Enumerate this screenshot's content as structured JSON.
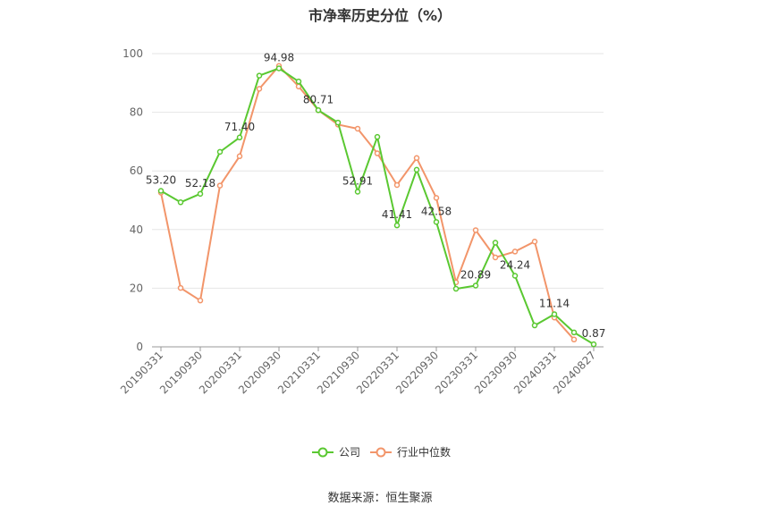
{
  "chart_data": {
    "type": "line",
    "title": "市净率历史分位（%）",
    "xlabel": "",
    "ylabel": "",
    "ylim": [
      0,
      100
    ],
    "yticks": [
      0,
      20,
      40,
      60,
      80,
      100
    ],
    "grid": true,
    "legend_position": "bottom",
    "x": [
      "20190331",
      "20190630",
      "20190930",
      "20191231",
      "20200331",
      "20200630",
      "20200930",
      "20201231",
      "20210331",
      "20210630",
      "20210930",
      "20211231",
      "20220331",
      "20220630",
      "20220930",
      "20221231",
      "20230331",
      "20230630",
      "20230930",
      "20231231",
      "20240331",
      "20240630",
      "20240827"
    ],
    "x_tick_labels": [
      "20190331",
      "20190930",
      "20200331",
      "20200930",
      "20210331",
      "20210930",
      "20220331",
      "20220930",
      "20230331",
      "20230930",
      "20240331",
      "20240827"
    ],
    "series": [
      {
        "name": "公司",
        "color": "#5ac831",
        "values": [
          53.2,
          49.3,
          52.18,
          66.5,
          71.4,
          92.5,
          94.98,
          90.5,
          80.71,
          76.5,
          52.91,
          71.6,
          41.41,
          60.4,
          42.58,
          19.8,
          20.89,
          35.5,
          24.24,
          7.3,
          11.14,
          4.9,
          0.87
        ],
        "labels": {
          "0": "53.20",
          "2": "52.18",
          "4": "71.40",
          "6": "94.98",
          "8": "80.71",
          "10": "52.91",
          "12": "41.41",
          "14": "42.58",
          "16": "20.89",
          "18": "24.24",
          "20": "11.14",
          "22": "0.87"
        }
      },
      {
        "name": "行业中位数",
        "color": "#f2956a",
        "values": [
          52.6,
          20.1,
          15.8,
          55.0,
          65.0,
          88.0,
          95.8,
          88.8,
          80.7,
          75.8,
          74.4,
          66.0,
          55.2,
          64.4,
          50.8,
          22.0,
          39.8,
          30.5,
          32.5,
          35.9,
          10.0,
          2.5,
          null
        ]
      }
    ]
  },
  "source": "数据来源：恒生聚源"
}
